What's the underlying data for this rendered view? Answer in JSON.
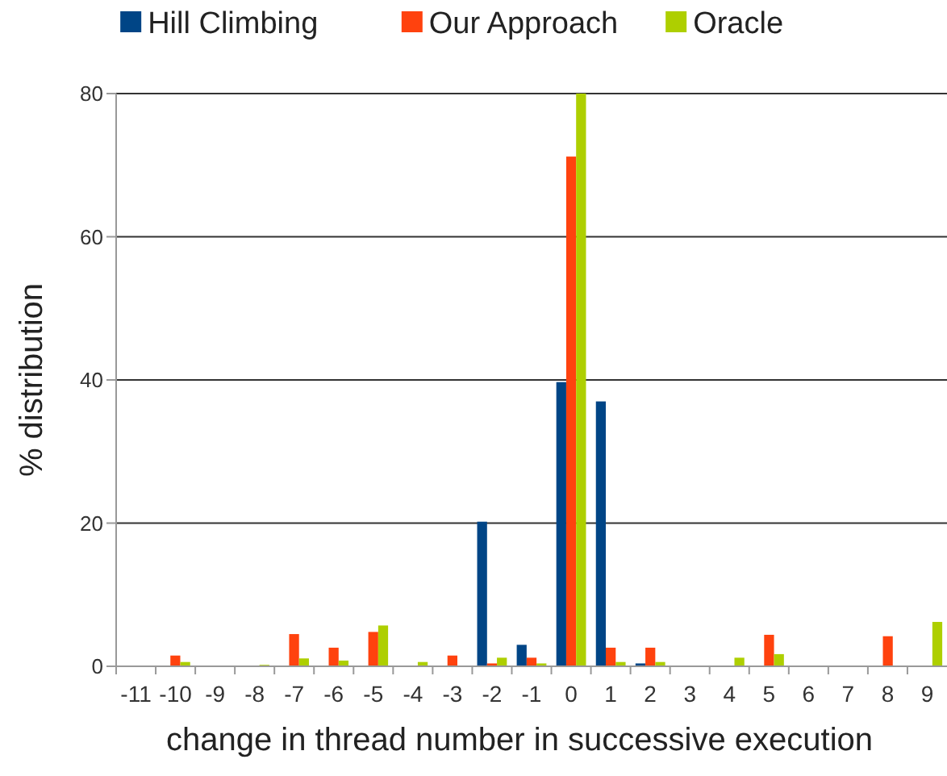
{
  "chart_data": {
    "type": "bar",
    "xlabel": "change in thread number in successive execution",
    "ylabel": "% distribution",
    "categories": [
      "-11",
      "-10",
      "-9",
      "-8",
      "-7",
      "-6",
      "-5",
      "-4",
      "-3",
      "-2",
      "-1",
      "0",
      "1",
      "2",
      "3",
      "4",
      "5",
      "6",
      "7",
      "8",
      "9"
    ],
    "series": [
      {
        "name": "Hill Climbing",
        "color": "#004586",
        "values": [
          0,
          0,
          0,
          0,
          0,
          0,
          0,
          0,
          0,
          20.2,
          3.0,
          39.7,
          37,
          0.4,
          0,
          0,
          0,
          0,
          0,
          0,
          0
        ]
      },
      {
        "name": "Our Approach",
        "color": "#ff420e",
        "values": [
          0,
          1.5,
          0,
          0,
          4.5,
          2.6,
          4.8,
          0,
          1.5,
          0.4,
          1.2,
          71.2,
          2.6,
          2.6,
          0,
          0,
          4.4,
          0,
          0,
          4.2,
          0
        ]
      },
      {
        "name": "Oracle",
        "color": "#aecf00",
        "values": [
          0,
          0.6,
          0,
          0.2,
          1.1,
          0.8,
          5.7,
          0.6,
          0,
          1.2,
          0.4,
          80,
          0.6,
          0.6,
          0,
          1.2,
          1.7,
          0,
          0,
          0,
          6.2
        ]
      }
    ],
    "ylim": [
      0,
      80
    ],
    "yticks": [
      0,
      20,
      40,
      60,
      80
    ],
    "grid": "y",
    "legend": "top"
  }
}
